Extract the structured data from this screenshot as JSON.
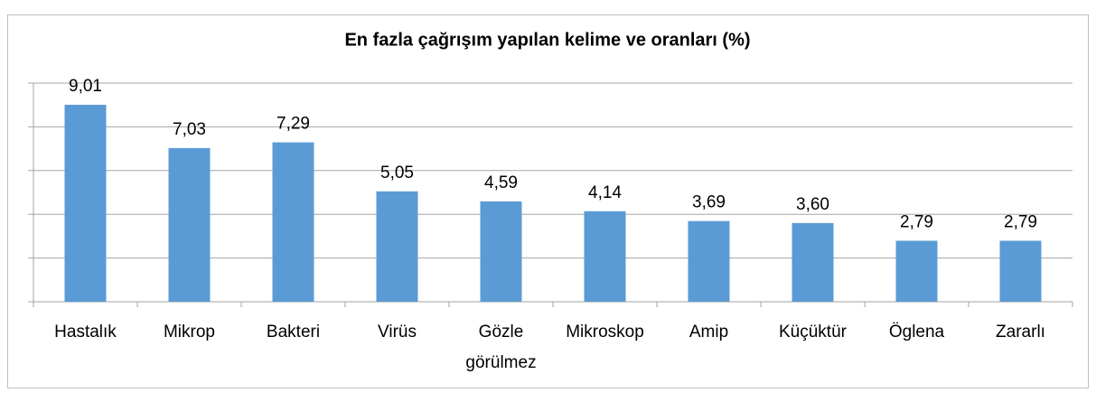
{
  "chart_data": {
    "type": "bar",
    "title": "En fazla çağrışım yapılan kelime ve oranları (%)",
    "categories": [
      "Hastalık",
      "Mikrop",
      "Bakteri",
      "Virüs",
      "Gözle görülmez",
      "Mikroskop",
      "Amip",
      "Küçüktür",
      "Öglena",
      "Zararlı"
    ],
    "values": [
      9.01,
      7.03,
      7.29,
      5.05,
      4.59,
      4.14,
      3.69,
      3.6,
      2.79,
      2.79
    ],
    "value_labels": [
      "9,01",
      "7,03",
      "7,29",
      "5,05",
      "4,59",
      "4,14",
      "3,69",
      "3,60",
      "2,79",
      "2,79"
    ],
    "color": "#5b9bd5",
    "ylim": [
      0,
      10
    ],
    "yticks": [
      0,
      2,
      4,
      6,
      8,
      10
    ],
    "grid": true
  }
}
